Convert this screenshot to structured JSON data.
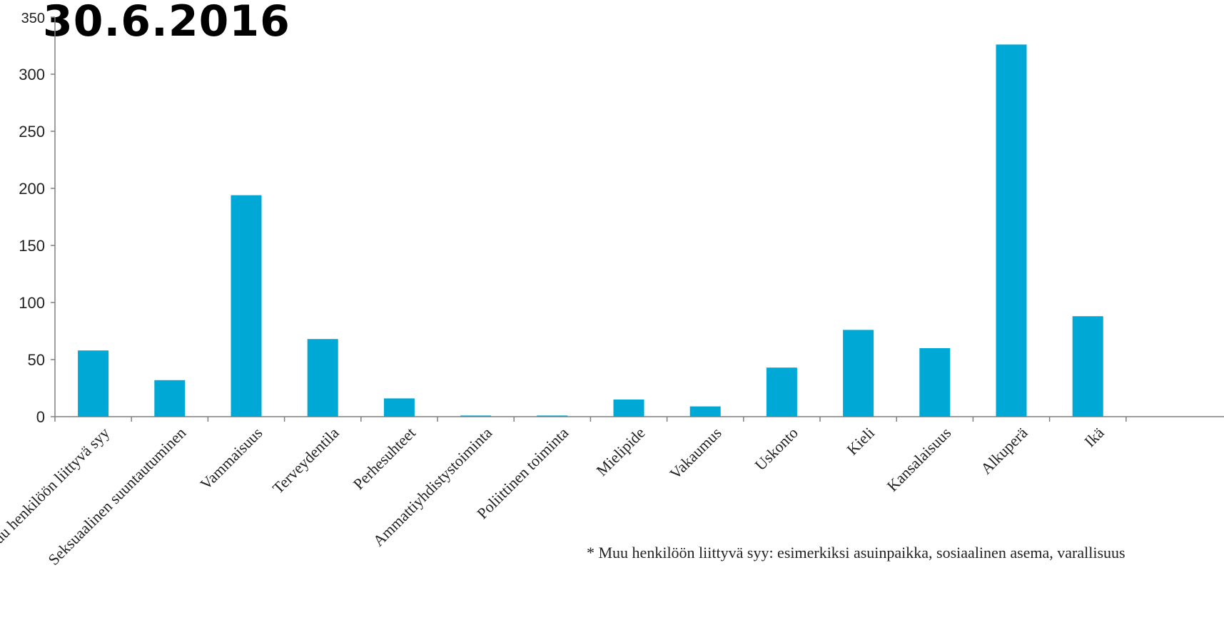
{
  "title": "30.6.2016",
  "footnote": "* Muu henkilöön liittyvä syy: esimerkiksi asuinpaikka, sosiaalinen asema, varallisuus",
  "colors": {
    "bar": "#00A8D6",
    "axis": "#7F7F7F"
  },
  "chart_data": {
    "type": "bar",
    "categories": [
      "Muu henkilöön liittyvä syy",
      "Seksuaalinen suuntautuminen",
      "Vammaisuus",
      "Terveydentila",
      "Perhesuhteet",
      "Ammattiyhdistystoiminta",
      "Poliittinen toiminta",
      "Mielipide",
      "Vakaumus",
      "Uskonto",
      "Kieli",
      "Kansalaisuus",
      "Alkuperä",
      "Ikä"
    ],
    "values": [
      58,
      32,
      194,
      68,
      16,
      1,
      1,
      15,
      9,
      43,
      76,
      60,
      326,
      88
    ],
    "yticks": [
      0,
      50,
      100,
      150,
      200,
      250,
      300,
      350
    ],
    "ylim": [
      0,
      350
    ],
    "grid": false,
    "legend": "none"
  }
}
